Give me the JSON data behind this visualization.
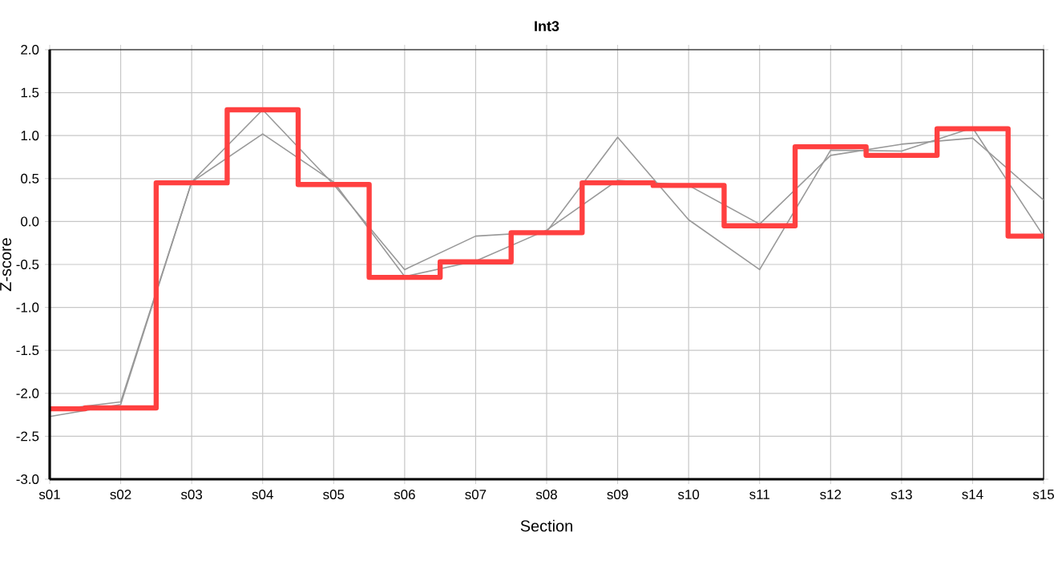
{
  "chart_data": {
    "type": "line",
    "title": "Int3",
    "xlabel": "Section",
    "ylabel": "Z-score",
    "categories": [
      "s01",
      "s02",
      "s03",
      "s04",
      "s05",
      "s06",
      "s07",
      "s08",
      "s09",
      "s10",
      "s11",
      "s12",
      "s13",
      "s14",
      "s15"
    ],
    "series": [
      {
        "color": "#999999",
        "values": [
          -2.27,
          -2.13,
          0.46,
          1.3,
          0.43,
          -0.56,
          -0.17,
          -0.12,
          0.98,
          0.02,
          -0.56,
          0.83,
          0.82,
          1.09,
          -0.17
        ]
      },
      {
        "color": "#999999",
        "values": [
          -2.2,
          -2.1,
          0.46,
          1.02,
          0.46,
          -0.64,
          -0.46,
          -0.1,
          0.48,
          0.42,
          -0.03,
          0.77,
          0.9,
          0.97,
          0.25
        ]
      },
      {
        "type": "step",
        "color": "#ff4040",
        "values": [
          -2.18,
          -2.17,
          0.45,
          1.3,
          0.43,
          -0.65,
          -0.47,
          -0.13,
          0.45,
          0.42,
          -0.05,
          0.87,
          0.77,
          1.08,
          -0.17
        ]
      }
    ],
    "ylim": [
      -3,
      2
    ],
    "yticks": [
      {
        "value": -3,
        "label": "-3.0"
      },
      {
        "value": -2.5,
        "label": "-2.5"
      },
      {
        "value": -2,
        "label": "-2.0"
      },
      {
        "value": -1.5,
        "label": "-1.5"
      },
      {
        "value": -1,
        "label": "-1.0"
      },
      {
        "value": -0.5,
        "label": "-0.5"
      },
      {
        "value": 0,
        "label": "0.0"
      },
      {
        "value": 0.5,
        "label": "0.5"
      },
      {
        "value": 1,
        "label": "1.0"
      },
      {
        "value": 1.5,
        "label": "1.5"
      },
      {
        "value": 2,
        "label": "2.0"
      }
    ],
    "grid": true,
    "marker": "none"
  }
}
